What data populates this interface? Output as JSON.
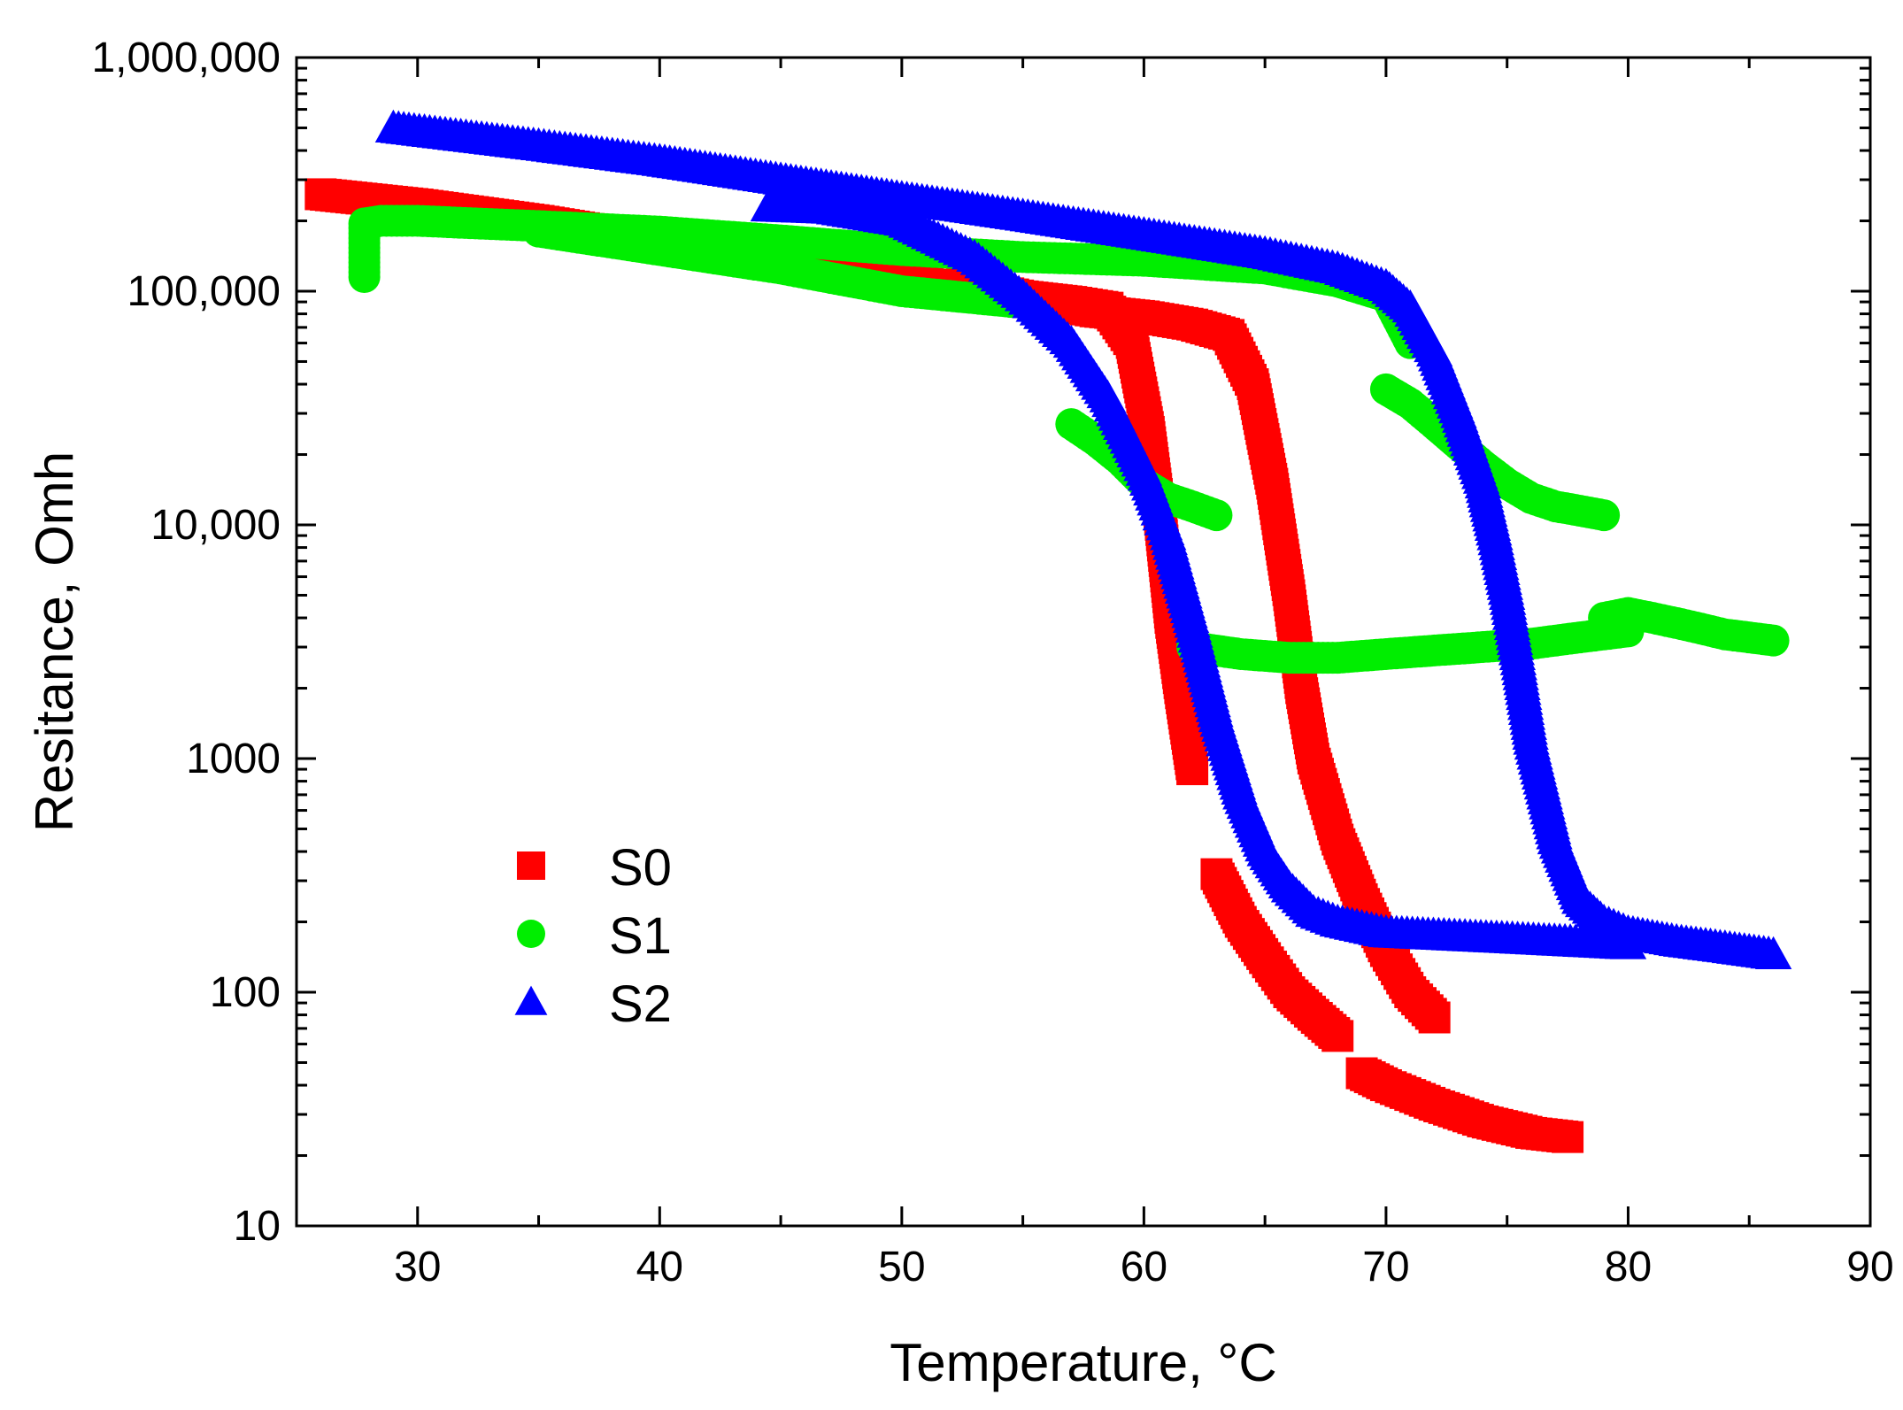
{
  "chart_data": {
    "type": "scatter",
    "title": "",
    "xlabel": "Temperature, °C",
    "ylabel": "Resitance, Omh",
    "xlim": [
      25,
      90
    ],
    "ylim": [
      10,
      1000000
    ],
    "yscale": "log",
    "grid": false,
    "legend_position": "bottom-left",
    "x_ticks": [
      30,
      40,
      50,
      60,
      70,
      80,
      90
    ],
    "x_tick_labels": [
      "30",
      "40",
      "50",
      "60",
      "70",
      "80",
      "90"
    ],
    "y_ticks": [
      10,
      100,
      1000,
      10000,
      100000,
      1000000
    ],
    "y_tick_labels": [
      "10",
      "100",
      "1000",
      "10,000",
      "100,000",
      "1,000,000"
    ],
    "series": [
      {
        "name": "S0",
        "color": "#ff0000",
        "marker": "square",
        "segments": [
          {
            "x": [
              26,
              30,
              35,
              40,
              45,
              50,
              53,
              55,
              57,
              58.5,
              59.5,
              60.2,
              60.7,
              61.1,
              61.5,
              62.0
            ],
            "y": [
              260000,
              235000,
              200000,
              165000,
              135000,
              112000,
              100000,
              95000,
              90000,
              85000,
              60000,
              25000,
              10000,
              4000,
              2000,
              900
            ]
          },
          {
            "x": [
              63,
              64,
              65,
              66,
              67,
              68
            ],
            "y": [
              320,
              200,
              140,
              100,
              80,
              65
            ]
          },
          {
            "x": [
              69,
              70,
              72,
              74,
              76,
              77.5
            ],
            "y": [
              45,
              40,
              33,
              28,
              25,
              24
            ]
          },
          {
            "x": [
              52.5,
              54,
              56,
              58,
              60,
              62,
              63.5,
              64.5,
              65.3,
              66,
              66.5,
              67,
              68,
              69,
              70,
              71,
              72
            ],
            "y": [
              110000,
              100000,
              90000,
              82000,
              78000,
              72000,
              65000,
              40000,
              15000,
              5000,
              2000,
              1000,
              450,
              250,
              150,
              100,
              78
            ]
          }
        ]
      },
      {
        "name": "S1",
        "color": "#00ee00",
        "marker": "circle",
        "segments": [
          {
            "x": [
              27.8,
              27.8,
              28.5,
              30,
              35,
              40,
              45,
              50,
              55,
              60,
              65,
              68,
              70,
              71
            ],
            "y": [
              115000,
              195000,
              200000,
              200000,
              190000,
              180000,
              165000,
              150000,
              140000,
              135000,
              125000,
              110000,
              95000,
              60000
            ]
          },
          {
            "x": [
              35,
              40,
              45,
              50,
              54.5
            ],
            "y": [
              180000,
              150000,
              125000,
              100000,
              90000
            ]
          },
          {
            "x": [
              57,
              58,
              59,
              60,
              61,
              62,
              63
            ],
            "y": [
              27000,
              23000,
              19000,
              15000,
              13000,
              12000,
              11000
            ]
          },
          {
            "x": [
              70,
              71,
              72,
              73,
              74,
              75,
              76,
              77,
              78,
              79
            ],
            "y": [
              38000,
              33000,
              27000,
              22000,
              18000,
              15000,
              13000,
              12000,
              11500,
              11000
            ]
          },
          {
            "x": [
              62,
              64,
              66,
              68,
              70,
              72,
              74,
              76,
              78,
              80
            ],
            "y": [
              3000,
              2800,
              2700,
              2700,
              2800,
              2900,
              3000,
              3100,
              3300,
              3500
            ]
          },
          {
            "x": [
              79,
              80,
              81,
              82,
              83,
              84,
              85,
              86
            ],
            "y": [
              4000,
              4200,
              4000,
              3800,
              3600,
              3400,
              3300,
              3200
            ]
          }
        ]
      },
      {
        "name": "S2",
        "color": "#0000ff",
        "marker": "triangle",
        "segments": [
          {
            "x": [
              29,
              35,
              40,
              45,
              50,
              55,
              60,
              65,
              68,
              70,
              71,
              72,
              73,
              74,
              74.5,
              75,
              75.5,
              76,
              77,
              78,
              79,
              80,
              82,
              84,
              86
            ],
            "y": [
              500000,
              420000,
              360000,
              300000,
              250000,
              210000,
              175000,
              145000,
              125000,
              105000,
              85000,
              55000,
              30000,
              15000,
              9000,
              5000,
              2500,
              1200,
              450,
              250,
              200,
              180,
              165,
              155,
              145
            ]
          },
          {
            "x": [
              44.5,
              47,
              50,
              53,
              55,
              57,
              58.5,
              60,
              61,
              62,
              63,
              64,
              65,
              66,
              67,
              68,
              70,
              75,
              80
            ],
            "y": [
              230000,
              225000,
              200000,
              140000,
              95000,
              60000,
              35000,
              17000,
              9000,
              3800,
              1500,
              700,
              400,
              280,
              220,
              200,
              180,
              170,
              160
            ]
          }
        ]
      }
    ]
  }
}
